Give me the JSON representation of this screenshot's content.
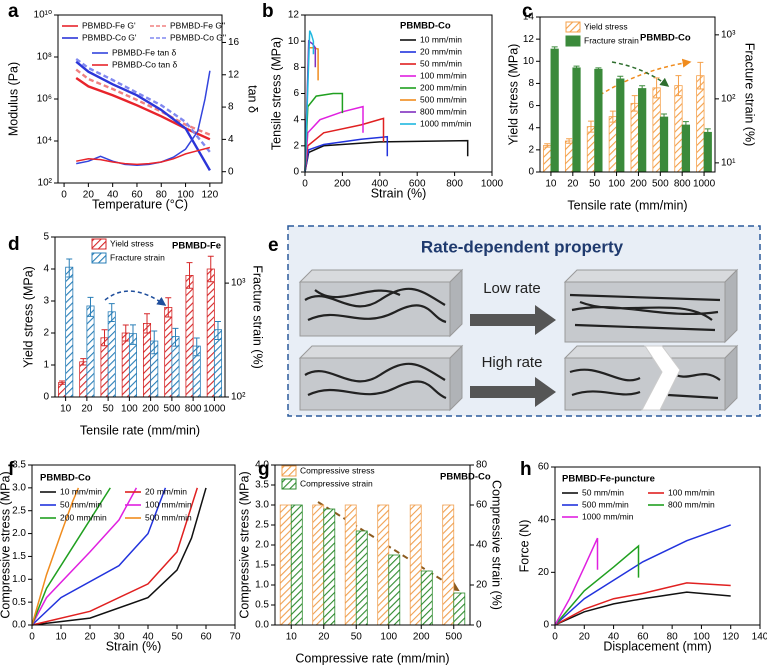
{
  "chart_data": [
    {
      "panel": "a",
      "type": "line",
      "xlabel": "Temperature (°C)",
      "ylabel": "Modulus (Pa)",
      "y2label": "tan δ",
      "xlim": [
        -5,
        130
      ],
      "xticks": [
        0,
        20,
        40,
        60,
        80,
        100,
        120
      ],
      "ylim": [
        100,
        10000000000
      ],
      "ylog": true,
      "yticks": [
        {
          "value": 100,
          "label": "10²"
        },
        {
          "value": 10000,
          "label": "10⁴"
        },
        {
          "value": 1000000,
          "label": "10⁶"
        },
        {
          "value": 100000000,
          "label": "10⁸"
        },
        {
          "value": 10000000000,
          "label": "10¹⁰"
        }
      ],
      "y2lim": [
        -1.4,
        19.4
      ],
      "y2ticks": [
        0,
        4,
        8,
        12,
        16
      ],
      "series": [
        {
          "name": "PBMBD-Fe G'",
          "color": "#e8242b",
          "x": [
            10,
            20,
            40,
            60,
            80,
            100,
            120
          ],
          "values": [
            10000000,
            4000000,
            1500000,
            500000,
            150000,
            40000,
            12000
          ]
        },
        {
          "name": "PBMBD-Fe G''",
          "color": "#f08080",
          "dash": true,
          "x": [
            10,
            20,
            40,
            60,
            80,
            100,
            120
          ],
          "values": [
            25000000,
            9000000,
            3000000,
            900000,
            250000,
            60000,
            20000
          ]
        },
        {
          "name": "PBMBD-Co G'",
          "color": "#2b35d8",
          "x": [
            10,
            20,
            40,
            60,
            80,
            100,
            120
          ],
          "values": [
            60000000,
            20000000,
            5000000,
            1500000,
            300000,
            40000,
            400
          ]
        },
        {
          "name": "PBMBD-Co G''",
          "color": "#8088f0",
          "dash": true,
          "x": [
            10,
            20,
            40,
            60,
            80,
            100,
            120
          ],
          "values": [
            80000000,
            30000000,
            8000000,
            2000000,
            500000,
            80000,
            3000
          ]
        },
        {
          "name": "PBMBD-Fe tan δ",
          "color": "#3344dd",
          "axis": "y2",
          "x": [
            10,
            20,
            30,
            40,
            50,
            60,
            70,
            80,
            90,
            100,
            110,
            116,
            120
          ],
          "values": [
            1,
            1.3,
            1.9,
            1.3,
            0.9,
            0.8,
            0.9,
            1.2,
            1.8,
            2.8,
            5,
            9,
            12.5
          ]
        },
        {
          "name": "PBMBD-Co tan δ",
          "color": "#e8242b",
          "axis": "y2",
          "x": [
            10,
            20,
            30,
            40,
            50,
            60,
            70,
            80,
            90,
            100,
            110,
            120
          ],
          "values": [
            1.3,
            1.6,
            1.5,
            1.2,
            1,
            0.9,
            1,
            1.2,
            1.6,
            2.2,
            2.6,
            3
          ]
        }
      ]
    },
    {
      "panel": "b",
      "type": "line",
      "xlabel": "Strain (%)",
      "ylabel": "Tensile stress (MPa)",
      "annotations": [
        "PBMBD-Co"
      ],
      "xlim": [
        0,
        1000
      ],
      "xticks": [
        0,
        200,
        400,
        600,
        800,
        1000
      ],
      "ylim": [
        0,
        12
      ],
      "yticks": [
        0,
        2,
        4,
        6,
        8,
        10,
        12
      ],
      "series": [
        {
          "name": "10 mm/min",
          "color": "#111111",
          "x": [
            0,
            20,
            100,
            400,
            870,
            870
          ],
          "values": [
            0,
            1.5,
            2,
            2.3,
            2.4,
            1.2
          ]
        },
        {
          "name": "20 mm/min",
          "color": "#2233dd",
          "x": [
            0,
            20,
            100,
            300,
            440,
            440
          ],
          "values": [
            0,
            1.7,
            2.1,
            2.5,
            2.7,
            1.2
          ]
        },
        {
          "name": "50 mm/min",
          "color": "#e02020",
          "x": [
            0,
            15,
            100,
            300,
            420,
            420
          ],
          "values": [
            0,
            2,
            3,
            3.6,
            4.1,
            2.3
          ]
        },
        {
          "name": "100 mm/min",
          "color": "#e020e0",
          "x": [
            0,
            15,
            80,
            200,
            310,
            310
          ],
          "values": [
            0,
            3,
            4,
            4.6,
            5,
            3
          ]
        },
        {
          "name": "200 mm/min",
          "color": "#20a020",
          "x": [
            0,
            15,
            60,
            150,
            200,
            200
          ],
          "values": [
            0,
            5,
            5.8,
            6,
            6,
            4.5
          ]
        },
        {
          "name": "500 mm/min",
          "color": "#f08c1e",
          "x": [
            0,
            20,
            40,
            70,
            70
          ],
          "values": [
            0,
            9.5,
            9.5,
            9.4,
            7
          ]
        },
        {
          "name": "800 mm/min",
          "color": "#8030c0",
          "x": [
            0,
            20,
            40,
            55,
            55
          ],
          "values": [
            0,
            10,
            9.8,
            9.5,
            8
          ]
        },
        {
          "name": "1000 mm/min",
          "color": "#20b8e0",
          "x": [
            0,
            25,
            35,
            45,
            45
          ],
          "values": [
            0,
            10.8,
            10.5,
            10,
            9
          ]
        }
      ]
    },
    {
      "panel": "c",
      "type": "bar",
      "xlabel": "Tensile rate (mm/min)",
      "ylabel": "Yield stress (MPa)",
      "y2label": "Fracture strain (%)",
      "annotations": [
        "PBMBD-Co"
      ],
      "categories": [
        "10",
        "20",
        "50",
        "100",
        "200",
        "500",
        "800",
        "1000"
      ],
      "ylim": [
        0,
        14
      ],
      "yticks": [
        0,
        2,
        4,
        6,
        8,
        10,
        12,
        14
      ],
      "y2lim": [
        7.2,
        1900
      ],
      "y2log": true,
      "y2ticks": [
        {
          "value": 10,
          "label": "10¹"
        },
        {
          "value": 100,
          "label": "10²"
        },
        {
          "value": 1000,
          "label": "10³"
        }
      ],
      "series": [
        {
          "name": "Yield stress",
          "color": "#f5a04a",
          "hatch": true,
          "values": [
            2.4,
            2.8,
            4.1,
            5.0,
            6.2,
            7.6,
            7.8,
            8.7
          ],
          "errors": [
            0.15,
            0.2,
            0.5,
            0.5,
            0.7,
            0.9,
            0.9,
            1.2
          ]
        },
        {
          "name": "Fracture strain",
          "color": "#3b8a3b",
          "axis": "y2",
          "values": [
            600,
            305,
            290,
            205,
            145,
            52,
            39,
            30
          ],
          "errors": [
            50,
            20,
            15,
            20,
            15,
            6,
            5,
            4
          ]
        }
      ]
    },
    {
      "panel": "d",
      "type": "bar",
      "xlabel": "Tensile rate (mm/min)",
      "ylabel": "Yield stress (MPa)",
      "y2label": "Fracture strain (%)",
      "annotations": [
        "PBMBD-Fe"
      ],
      "categories": [
        "10",
        "20",
        "50",
        "100",
        "200",
        "500",
        "800",
        "1000"
      ],
      "ylim": [
        0,
        5
      ],
      "yticks": [
        0,
        1,
        2,
        3,
        4,
        5
      ],
      "y2lim": [
        100,
        2540
      ],
      "y2log": true,
      "y2ticks": [
        {
          "value": 100,
          "label": "10²"
        },
        {
          "value": 1000,
          "label": "10³"
        }
      ],
      "series": [
        {
          "name": "Yield stress",
          "color": "#d62728",
          "hatch": true,
          "values": [
            0.45,
            1.1,
            1.85,
            2.0,
            2.3,
            2.8,
            3.8,
            4.0
          ],
          "errors": [
            0.05,
            0.1,
            0.25,
            0.25,
            0.3,
            0.3,
            0.4,
            0.4
          ]
        },
        {
          "name": "Fracture strain",
          "color": "#2a7fb8",
          "hatch": true,
          "axis": "y2",
          "values": [
            1380,
            630,
            560,
            360,
            310,
            340,
            280,
            390
          ],
          "errors": [
            250,
            120,
            100,
            70,
            70,
            60,
            50,
            70
          ]
        }
      ]
    },
    {
      "panel": "f",
      "type": "line",
      "xlabel": "Strain (%)",
      "ylabel": "Compressive stress (MPa)",
      "annotations": [
        "PBMBD-Co"
      ],
      "xlim": [
        0,
        70
      ],
      "xticks": [
        0,
        10,
        20,
        30,
        40,
        50,
        60,
        70
      ],
      "ylim": [
        0,
        3.5
      ],
      "yticks": [
        {
          "value": 0,
          "label": "0.0"
        },
        0.5,
        {
          "value": 1,
          "label": "1.0"
        },
        1.5,
        {
          "value": 2,
          "label": "2.0"
        },
        2.5,
        {
          "value": 3,
          "label": "3.0"
        },
        3.5
      ],
      "series": [
        {
          "name": "10 mm/min",
          "color": "#111111",
          "x": [
            0,
            20,
            40,
            50,
            55,
            60
          ],
          "values": [
            0,
            0.15,
            0.6,
            1.2,
            1.9,
            3
          ]
        },
        {
          "name": "20 mm/min",
          "color": "#e02020",
          "x": [
            0,
            20,
            40,
            50,
            57
          ],
          "values": [
            0,
            0.3,
            0.9,
            1.6,
            3
          ]
        },
        {
          "name": "50 mm/min",
          "color": "#2233dd",
          "x": [
            0,
            10,
            30,
            40,
            46
          ],
          "values": [
            0,
            0.6,
            1.3,
            2,
            3
          ]
        },
        {
          "name": "100 mm/min",
          "color": "#e020e0",
          "x": [
            0,
            5,
            20,
            30,
            36
          ],
          "values": [
            0,
            0.6,
            1.6,
            2.3,
            3
          ]
        },
        {
          "name": "200 mm/min",
          "color": "#20a020",
          "x": [
            0,
            5,
            15,
            22,
            27
          ],
          "values": [
            0,
            0.8,
            1.8,
            2.5,
            3
          ]
        },
        {
          "name": "500 mm/min",
          "color": "#f08c1e",
          "x": [
            0,
            5,
            10,
            14,
            16
          ],
          "values": [
            0,
            1.1,
            2,
            2.7,
            3
          ]
        }
      ]
    },
    {
      "panel": "g",
      "type": "bar",
      "xlabel": "Compressive rate (mm/min)",
      "ylabel": "Compressive stress (MPa)",
      "y2label": "Compressive strain (%)",
      "annotations": [
        "PBMBD-Co"
      ],
      "categories": [
        "10",
        "20",
        "50",
        "100",
        "200",
        "500"
      ],
      "ylim": [
        0,
        4
      ],
      "yticks": [
        {
          "value": 0,
          "label": "0.0"
        },
        0.5,
        {
          "value": 1,
          "label": "1.0"
        },
        1.5,
        {
          "value": 2,
          "label": "2.0"
        },
        2.5,
        {
          "value": 3,
          "label": "3.0"
        },
        3.5,
        {
          "value": 4,
          "label": "4.0"
        }
      ],
      "y2lim": [
        0,
        80
      ],
      "y2ticks": [
        0,
        20,
        40,
        60,
        80
      ],
      "series": [
        {
          "name": "Compressive stress",
          "color": "#f0a050",
          "hatch": true,
          "values": [
            3,
            3,
            3,
            3,
            3,
            3
          ]
        },
        {
          "name": "Compressive strain",
          "color": "#2e8b2e",
          "hatch": true,
          "axis": "y2",
          "values": [
            60,
            58,
            47,
            35,
            27,
            16
          ]
        }
      ]
    },
    {
      "panel": "h",
      "type": "line",
      "xlabel": "Displacement (mm)",
      "ylabel": "Force (N)",
      "annotations": [
        "PBMBD-Fe-puncture"
      ],
      "xlim": [
        0,
        140
      ],
      "xticks": [
        0,
        20,
        40,
        60,
        80,
        100,
        120,
        140
      ],
      "ylim": [
        0,
        60
      ],
      "yticks": [
        0,
        20,
        40,
        60
      ],
      "series": [
        {
          "name": "50 mm/min",
          "color": "#111111",
          "x": [
            0,
            20,
            40,
            60,
            90,
            120
          ],
          "values": [
            0,
            5,
            8,
            10,
            12.5,
            11
          ]
        },
        {
          "name": "100 mm/min",
          "color": "#e02020",
          "x": [
            0,
            20,
            40,
            60,
            90,
            120
          ],
          "values": [
            0,
            6,
            10,
            12,
            16,
            15
          ]
        },
        {
          "name": "500 mm/min",
          "color": "#2233dd",
          "x": [
            0,
            20,
            40,
            60,
            90,
            120
          ],
          "values": [
            0,
            10,
            17,
            24,
            32,
            38
          ]
        },
        {
          "name": "800 mm/min",
          "color": "#20a020",
          "x": [
            0,
            20,
            40,
            57,
            57
          ],
          "values": [
            0,
            13,
            22,
            30,
            18
          ]
        },
        {
          "name": "1000 mm/min",
          "color": "#e020e0",
          "x": [
            0,
            10,
            20,
            29,
            29
          ],
          "values": [
            0,
            10,
            22,
            33,
            21
          ]
        }
      ]
    }
  ],
  "diagram": {
    "panel": "e",
    "title": "Rate-dependent property",
    "arrows": [
      "Low rate",
      "High rate"
    ]
  }
}
